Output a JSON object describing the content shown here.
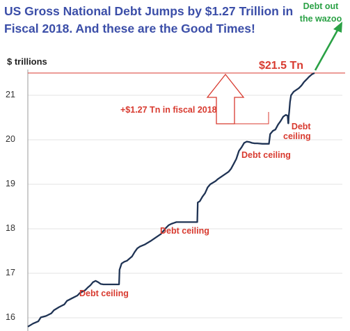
{
  "title": "US Gross National Debt Jumps by $1.27 Trillion in Fiscal 2018. And these are the Good Times!",
  "colors": {
    "title": "#3b4ea8",
    "line": "#1f3354",
    "annotation": "#d83a2f",
    "green_note": "#2aa145",
    "grid": "#e3e3e3"
  },
  "annotations": {
    "current_value": "$21.5 Tn",
    "fiscal_jump": "+$1.27 Tn in fiscal 2018",
    "debt_ceiling": "Debt ceiling",
    "debt_ceiling_split": [
      "Debt",
      "ceiling"
    ],
    "green_note": [
      "Debt out",
      "the wazoo"
    ]
  },
  "chart_data": {
    "type": "line",
    "title": "US Gross National Debt Jumps by $1.27 Trillion in Fiscal 2018. And these are the Good Times!",
    "ylabel": "$ trillions",
    "xlabel": "",
    "ylim": [
      15.8,
      21.6
    ],
    "yticks": [
      16,
      17,
      18,
      19,
      20,
      21
    ],
    "grid": "horizontal",
    "reference_line": 21.5,
    "series": [
      {
        "points": [
          [
            0,
            15.8
          ],
          [
            2,
            15.87
          ],
          [
            4,
            15.92
          ],
          [
            5,
            16.01
          ],
          [
            7,
            16.04
          ],
          [
            9,
            16.1
          ],
          [
            10,
            16.17
          ],
          [
            12,
            16.24
          ],
          [
            14,
            16.3
          ],
          [
            15,
            16.38
          ],
          [
            17,
            16.44
          ],
          [
            19,
            16.5
          ],
          [
            20,
            16.56
          ],
          [
            22,
            16.62
          ],
          [
            23,
            16.68
          ],
          [
            24,
            16.73
          ],
          [
            25,
            16.8
          ],
          [
            26,
            16.83
          ],
          [
            27,
            16.8
          ],
          [
            28,
            16.76
          ],
          [
            29,
            16.75
          ],
          [
            32,
            16.75
          ],
          [
            34,
            16.75
          ],
          [
            35,
            16.75
          ],
          [
            35.2,
            17.08
          ],
          [
            36,
            17.22
          ],
          [
            37,
            17.26
          ],
          [
            38,
            17.28
          ],
          [
            39,
            17.33
          ],
          [
            40,
            17.38
          ],
          [
            41,
            17.48
          ],
          [
            42,
            17.56
          ],
          [
            43,
            17.6
          ],
          [
            45,
            17.65
          ],
          [
            47,
            17.72
          ],
          [
            49,
            17.8
          ],
          [
            51,
            17.88
          ],
          [
            52,
            17.95
          ],
          [
            53,
            18.02
          ],
          [
            54,
            18.08
          ],
          [
            55,
            18.11
          ],
          [
            56,
            18.13
          ],
          [
            57,
            18.15
          ],
          [
            58,
            18.15
          ],
          [
            65,
            18.15
          ],
          [
            65.2,
            18.59
          ],
          [
            66,
            18.62
          ],
          [
            67,
            18.72
          ],
          [
            68,
            18.8
          ],
          [
            69,
            18.93
          ],
          [
            70,
            19.0
          ],
          [
            72,
            19.07
          ],
          [
            73,
            19.12
          ],
          [
            75,
            19.2
          ],
          [
            77,
            19.28
          ],
          [
            78,
            19.35
          ],
          [
            79,
            19.46
          ],
          [
            80,
            19.57
          ],
          [
            81,
            19.75
          ],
          [
            82,
            19.83
          ],
          [
            83,
            19.93
          ],
          [
            84,
            19.96
          ],
          [
            85,
            19.95
          ],
          [
            86,
            19.93
          ],
          [
            87,
            19.92
          ],
          [
            88,
            19.92
          ],
          [
            90,
            19.91
          ],
          [
            92,
            19.91
          ],
          [
            92.5,
            19.91
          ],
          [
            93,
            20.13
          ],
          [
            94,
            20.2
          ],
          [
            95,
            20.23
          ],
          [
            96,
            20.34
          ],
          [
            97,
            20.42
          ],
          [
            98,
            20.52
          ],
          [
            99,
            20.56
          ],
          [
            99.7,
            20.54
          ],
          [
            99.9,
            20.37
          ],
          [
            100,
            20.37
          ],
          [
            100.1,
            20.52
          ],
          [
            100.3,
            20.64
          ],
          [
            100.6,
            20.85
          ],
          [
            101,
            21.0
          ],
          [
            102,
            21.08
          ],
          [
            103,
            21.12
          ],
          [
            104,
            21.16
          ],
          [
            105,
            21.22
          ],
          [
            106,
            21.3
          ],
          [
            107,
            21.36
          ],
          [
            108,
            21.42
          ],
          [
            109,
            21.47
          ],
          [
            110,
            21.5
          ]
        ]
      }
    ]
  }
}
